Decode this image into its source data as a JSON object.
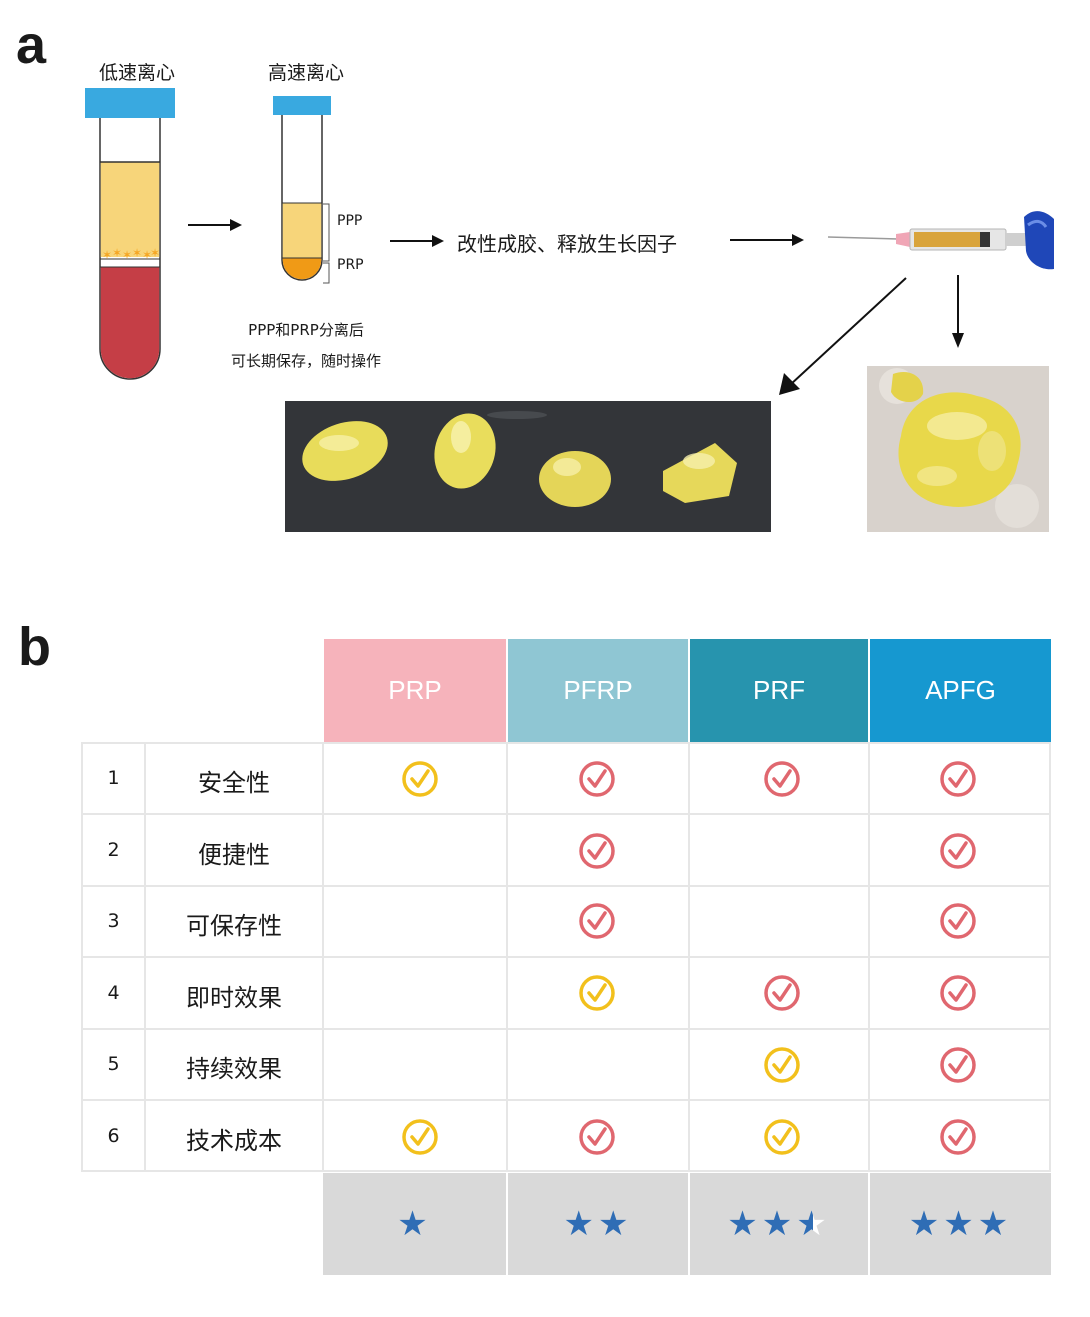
{
  "panel_a": {
    "letter": "a",
    "tube1_title": "低速离心",
    "tube2_title": "高速离心",
    "tube2_top_label": "PPP",
    "tube2_bottom_label": "PRP",
    "note_line1": "PPP和PRP分离后",
    "note_line2": "可长期保存，随时操作",
    "process_text": "改性成胶、释放生长因子"
  },
  "panel_b": {
    "letter": "b",
    "columns": [
      {
        "label": "PRP",
        "color": "#f6b3bb"
      },
      {
        "label": "PFRP",
        "color": "#8fc6d3"
      },
      {
        "label": "PRF",
        "color": "#2794ae"
      },
      {
        "label": "APFG",
        "color": "#1698d0"
      }
    ],
    "rows": [
      {
        "num": "1",
        "label": "安全性",
        "marks": [
          "yellow",
          "red",
          "red",
          "red"
        ]
      },
      {
        "num": "2",
        "label": "便捷性",
        "marks": [
          "",
          "red",
          "",
          "red"
        ]
      },
      {
        "num": "3",
        "label": "可保存性",
        "marks": [
          "",
          "red",
          "",
          "red"
        ]
      },
      {
        "num": "4",
        "label": "即时效果",
        "marks": [
          "",
          "yellow",
          "red",
          "red"
        ]
      },
      {
        "num": "5",
        "label": "持续效果",
        "marks": [
          "",
          "",
          "yellow",
          "red"
        ]
      },
      {
        "num": "6",
        "label": "技术成本",
        "marks": [
          "yellow",
          "red",
          "yellow",
          "red"
        ]
      }
    ],
    "ratings": [
      1,
      2,
      2.5,
      3
    ],
    "mark_colors": {
      "red": "#e0676f",
      "yellow": "#f2c01c"
    },
    "star_color": "#2f6db5"
  }
}
